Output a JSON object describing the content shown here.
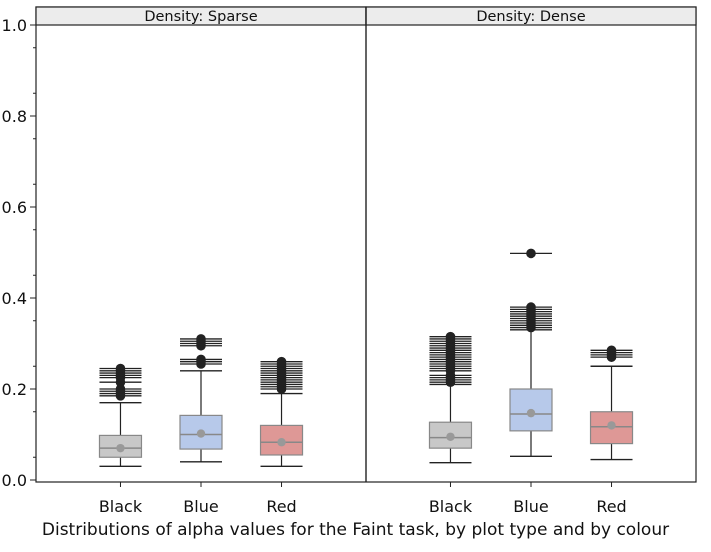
{
  "caption": "Distributions of alpha values for the Faint task, by plot type and by colour",
  "chart_data": {
    "type": "boxplot",
    "title": "Distributions of alpha values for the Faint task, by plot type and by colour",
    "ylim": [
      0,
      1.0
    ],
    "yticks": [
      0.0,
      0.2,
      0.4,
      0.6,
      0.8,
      1.0
    ],
    "ytick_labels": [
      "0.0",
      "0.2",
      "0.4",
      "0.6",
      "0.8",
      "1.0"
    ],
    "grid": false,
    "panels": [
      {
        "label": "Density: Sparse",
        "groups": [
          {
            "category": "Black",
            "color": "#c8c8c8",
            "whisker_low": 0.03,
            "q1": 0.05,
            "median": 0.07,
            "q3": 0.098,
            "whisker_high": 0.17,
            "mean": 0.07,
            "outliers": [
              0.185,
              0.19,
              0.195,
              0.2,
              0.215,
              0.225,
              0.23,
              0.235,
              0.24,
              0.245
            ]
          },
          {
            "category": "Blue",
            "color": "#b7c9ea",
            "whisker_low": 0.04,
            "q1": 0.068,
            "median": 0.1,
            "q3": 0.142,
            "whisker_high": 0.24,
            "mean": 0.102,
            "outliers": [
              0.255,
              0.26,
              0.265,
              0.295,
              0.3,
              0.305,
              0.31
            ]
          },
          {
            "category": "Red",
            "color": "#de9896",
            "whisker_low": 0.03,
            "q1": 0.055,
            "median": 0.083,
            "q3": 0.12,
            "whisker_high": 0.19,
            "mean": 0.083,
            "outliers": [
              0.2,
              0.205,
              0.21,
              0.215,
              0.22,
              0.225,
              0.23,
              0.235,
              0.24,
              0.245,
              0.25,
              0.255,
              0.26
            ]
          }
        ]
      },
      {
        "label": "Density: Dense",
        "groups": [
          {
            "category": "Black",
            "color": "#c8c8c8",
            "whisker_low": 0.038,
            "q1": 0.07,
            "median": 0.093,
            "q3": 0.127,
            "whisker_high": 0.21,
            "mean": 0.095,
            "outliers": [
              0.215,
              0.22,
              0.225,
              0.23,
              0.24,
              0.245,
              0.25,
              0.255,
              0.26,
              0.265,
              0.27,
              0.275,
              0.28,
              0.285,
              0.29,
              0.295,
              0.3,
              0.305,
              0.31,
              0.315
            ]
          },
          {
            "category": "Blue",
            "color": "#b7c9ea",
            "whisker_low": 0.052,
            "q1": 0.108,
            "median": 0.145,
            "q3": 0.2,
            "whisker_high": 0.33,
            "mean": 0.147,
            "outliers": [
              0.335,
              0.34,
              0.345,
              0.35,
              0.355,
              0.36,
              0.365,
              0.37,
              0.375,
              0.38,
              0.498
            ]
          },
          {
            "category": "Red",
            "color": "#de9896",
            "whisker_low": 0.045,
            "q1": 0.08,
            "median": 0.117,
            "q3": 0.15,
            "whisker_high": 0.25,
            "mean": 0.12,
            "outliers": [
              0.27,
              0.275,
              0.28,
              0.285
            ]
          }
        ]
      }
    ]
  }
}
